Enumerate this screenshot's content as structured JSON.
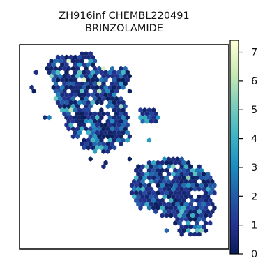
{
  "chart_data": {
    "type": "heatmap",
    "subtype": "hexbin",
    "title_line1": "ZH916inf CHEMBL220491",
    "title_line2": "BRINZOLAMIDE",
    "xlabel": "",
    "ylabel": "",
    "axis_ticks_visible": false,
    "colormap": "YlGnBu_r",
    "colorbar": {
      "vmin": 0,
      "vmax": 7.4,
      "ticks": [
        "0",
        "1",
        "2",
        "3",
        "4",
        "5",
        "6",
        "7"
      ]
    },
    "clusters": [
      {
        "name": "upper-left cluster",
        "approx_value_range": [
          0,
          7
        ],
        "dominant_values": [
          0.5,
          2.5
        ]
      },
      {
        "name": "middle satellite cluster",
        "approx_value_range": [
          0,
          2
        ],
        "dominant_values": [
          0.5,
          1.5
        ]
      },
      {
        "name": "lower-right cluster",
        "approx_value_range": [
          0,
          6.5
        ],
        "dominant_values": [
          0.5,
          3
        ]
      }
    ],
    "colors": {
      "low": "#081d58",
      "mid_low": "#253494",
      "mid": "#1d91c0",
      "mid_high": "#41b6c4",
      "high": "#c7e9b4",
      "max": "#ffffd9"
    }
  }
}
